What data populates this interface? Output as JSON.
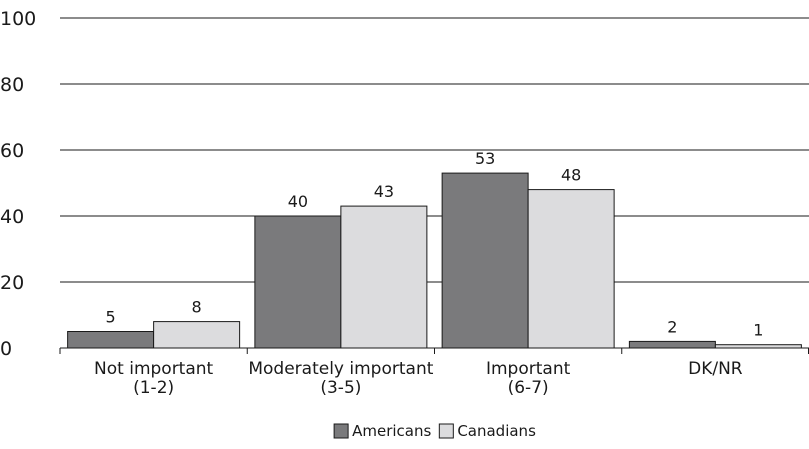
{
  "chart_data": {
    "type": "bar",
    "categories": [
      [
        "Not important",
        "(1-2)"
      ],
      [
        "Moderately important",
        "(3-5)"
      ],
      [
        "Important",
        "(6-7)"
      ],
      [
        "DK/NR"
      ]
    ],
    "series": [
      {
        "name": "Americans",
        "values": [
          5,
          40,
          53,
          2
        ],
        "color": "#7a7a7c"
      },
      {
        "name": "Canadians",
        "values": [
          8,
          43,
          48,
          1
        ],
        "color": "#dcdcde"
      }
    ],
    "ylim": [
      0,
      100
    ],
    "yticks": [
      0,
      20,
      40,
      60,
      80,
      100
    ],
    "grid": true,
    "legend": "bottom-center",
    "data_labels": true
  }
}
